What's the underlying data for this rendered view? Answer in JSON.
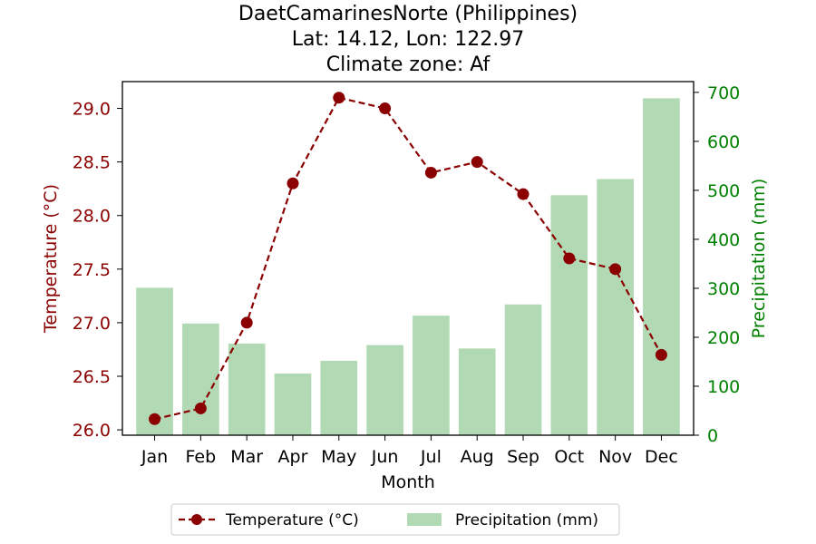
{
  "chart_data": {
    "type": "bar+line",
    "title_lines": [
      "DaetCamarinesNorte (Philippines)",
      "Lat: 14.12, Lon: 122.97",
      "Climate zone: Af"
    ],
    "categories": [
      "Jan",
      "Feb",
      "Mar",
      "Apr",
      "May",
      "Jun",
      "Jul",
      "Aug",
      "Sep",
      "Oct",
      "Nov",
      "Dec"
    ],
    "xlabel": "Month",
    "temperature": {
      "name": "Temperature (°C)",
      "axis_label": "Temperature (°C)",
      "values": [
        26.1,
        26.2,
        27.0,
        28.3,
        29.1,
        29.0,
        28.4,
        28.5,
        28.2,
        27.6,
        27.5,
        26.7
      ],
      "ylim": [
        25.95,
        29.25
      ],
      "ticks": [
        26.0,
        26.5,
        27.0,
        27.5,
        28.0,
        28.5,
        29.0
      ],
      "color": "#8b0000",
      "line_style": "dashed",
      "marker": "circle"
    },
    "precipitation": {
      "name": "Precipitation (mm)",
      "axis_label": "Precipitation (mm)",
      "values": [
        301,
        228,
        187,
        126,
        152,
        184,
        244,
        177,
        267,
        490,
        523,
        688
      ],
      "ylim": [
        0,
        722
      ],
      "ticks": [
        0,
        100,
        200,
        300,
        400,
        500,
        600,
        700
      ],
      "color": "#b1d9b3",
      "axis_color": "#008000"
    },
    "legend_position": "bottom-center",
    "grid": false
  }
}
